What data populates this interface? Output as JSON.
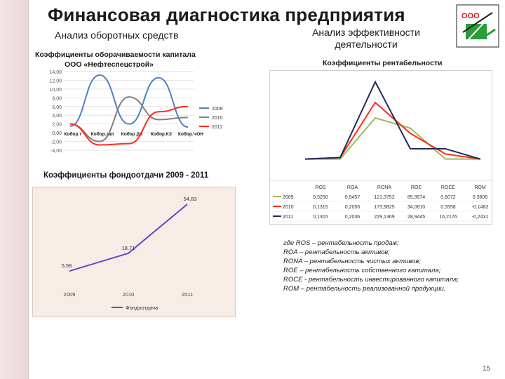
{
  "slide": {
    "title": "Финансовая диагностика предприятия",
    "subtitle_left": "Анализ оборотных средств",
    "subtitle_right": "Анализ эффективности деятельности",
    "label_turnover": "Коэффициенты оборачиваемости капитала",
    "label_company": "ООО «Нефтеспецстрой»",
    "label_profitability": "Коэффициенты рентабельности",
    "label_capital_productivity": "Коэффициенты фондоотдачи 2009 - 2011",
    "logo_text": "ООО",
    "page_number": "15"
  },
  "definitions": [
    "где ROS – рентабельность продаж;",
    "ROA – рентабельность активов;",
    "RONA – рентабельность чистых активов;",
    "ROE – рентабельность собственного капитала;",
    "ROCE - рентабельность инвестированного капитала;",
    "ROM – рентабельность реализованной продукции."
  ],
  "chart_data": [
    {
      "type": "line",
      "title": "Коэффициенты оборачиваемости капитала",
      "categories": [
        "Кобор.т",
        "Кобор.зап",
        "Кобор ДЗ",
        "Кобор.КЗ",
        "Кобор.ЧОН"
      ],
      "y_ticks": [
        "14,00",
        "12,00",
        "10,00",
        "8,00",
        "6,00",
        "4,00",
        "2,00",
        "0,00",
        "-2,00",
        "-4,00"
      ],
      "ylim": [
        -4,
        14
      ],
      "grid": true,
      "legend_position": "right",
      "series": [
        {
          "name": "2009",
          "color": "#4f81bd",
          "values": [
            1.5,
            13.2,
            2.0,
            12.6,
            1.3
          ]
        },
        {
          "name": "2010",
          "color": "#7f7f7f",
          "values": [
            2.0,
            -2.0,
            8.2,
            3.0,
            3.5
          ]
        },
        {
          "name": "2011",
          "color": "#ff2a1a",
          "values": [
            2.0,
            -2.8,
            -2.5,
            4.8,
            6.0
          ]
        }
      ]
    },
    {
      "type": "line",
      "title": "Коэффициенты рентабельности",
      "categories": [
        "ROS",
        "ROA",
        "RONA",
        "ROE",
        "ROCE",
        "ROM"
      ],
      "ylim": [
        -0.4,
        1.4
      ],
      "grid": false,
      "table": {
        "rows": [
          {
            "name": "2009",
            "color": "#9bbb59",
            "values": [
              "0,5250",
              "0,5457",
              "121,3752",
              "85,9574",
              "0,6072",
              "0,3606"
            ]
          },
          {
            "name": "2010",
            "color": "#ff2a1a",
            "values": [
              "0,1315",
              "0,2056",
              "173,9825",
              "34,0810",
              "0,5558",
              "-0,1482"
            ]
          },
          {
            "name": "2011",
            "color": "#1f2d5c",
            "values": [
              "0,1315",
              "0,2036",
              "229,1369",
              "28,9445",
              "16,2176",
              "-0,2431"
            ]
          }
        ]
      },
      "series": [
        {
          "name": "2009",
          "color": "#9bbb59",
          "values": [
            -0.15,
            -0.15,
            0.65,
            0.45,
            -0.15,
            -0.15
          ]
        },
        {
          "name": "2010",
          "color": "#ff2a1a",
          "values": [
            -0.15,
            -0.12,
            0.95,
            0.35,
            -0.05,
            -0.15
          ]
        },
        {
          "name": "2011",
          "color": "#1f2d5c",
          "values": [
            -0.15,
            -0.12,
            1.35,
            0.05,
            0.05,
            -0.15
          ]
        }
      ]
    },
    {
      "type": "line",
      "title": "Коэффициенты фондоотдачи 2009 - 2011",
      "categories": [
        "2009",
        "2010",
        "2011"
      ],
      "ylim": [
        0,
        60
      ],
      "grid": false,
      "legend_position": "bottom",
      "series": [
        {
          "name": "Фондоотдача",
          "color": "#5b4fc4",
          "values": [
            5.58,
            18.71,
            54.83
          ],
          "labels": [
            "5,58",
            "18,71",
            "54,83"
          ]
        }
      ]
    }
  ]
}
